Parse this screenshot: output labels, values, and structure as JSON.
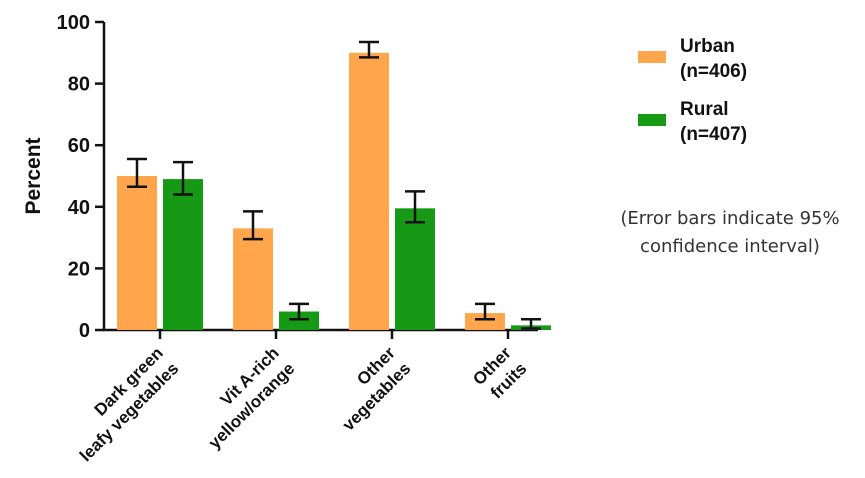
{
  "chart_data": {
    "type": "bar",
    "ylabel": "Percent",
    "ylim": [
      0,
      100
    ],
    "yticks": [
      0,
      20,
      40,
      60,
      80,
      100
    ],
    "categories": [
      [
        "Dark green",
        "leafy vegetables"
      ],
      [
        "Vit A-rich",
        "yellow/orange"
      ],
      [
        "Other",
        "vegetables"
      ],
      [
        "Other",
        "fruits"
      ]
    ],
    "series": [
      {
        "name": [
          "Urban",
          "(n=406)"
        ],
        "color": "#FFA64D",
        "values": [
          50,
          33,
          90,
          5.5
        ],
        "err_low": [
          46.5,
          29.5,
          88.5,
          3.5
        ],
        "err_high": [
          55.5,
          38.5,
          93.5,
          8.5
        ]
      },
      {
        "name": [
          "Rural",
          "(n=407)"
        ],
        "color": "#169A16",
        "values": [
          49,
          6,
          39.5,
          1.5
        ],
        "err_low": [
          44,
          3.5,
          35,
          0.5
        ],
        "err_high": [
          54.5,
          8.5,
          45,
          3.5
        ]
      }
    ],
    "legend_position": "top-right",
    "note": [
      "(Error bars indicate 95%",
      "confidence interval)"
    ]
  }
}
